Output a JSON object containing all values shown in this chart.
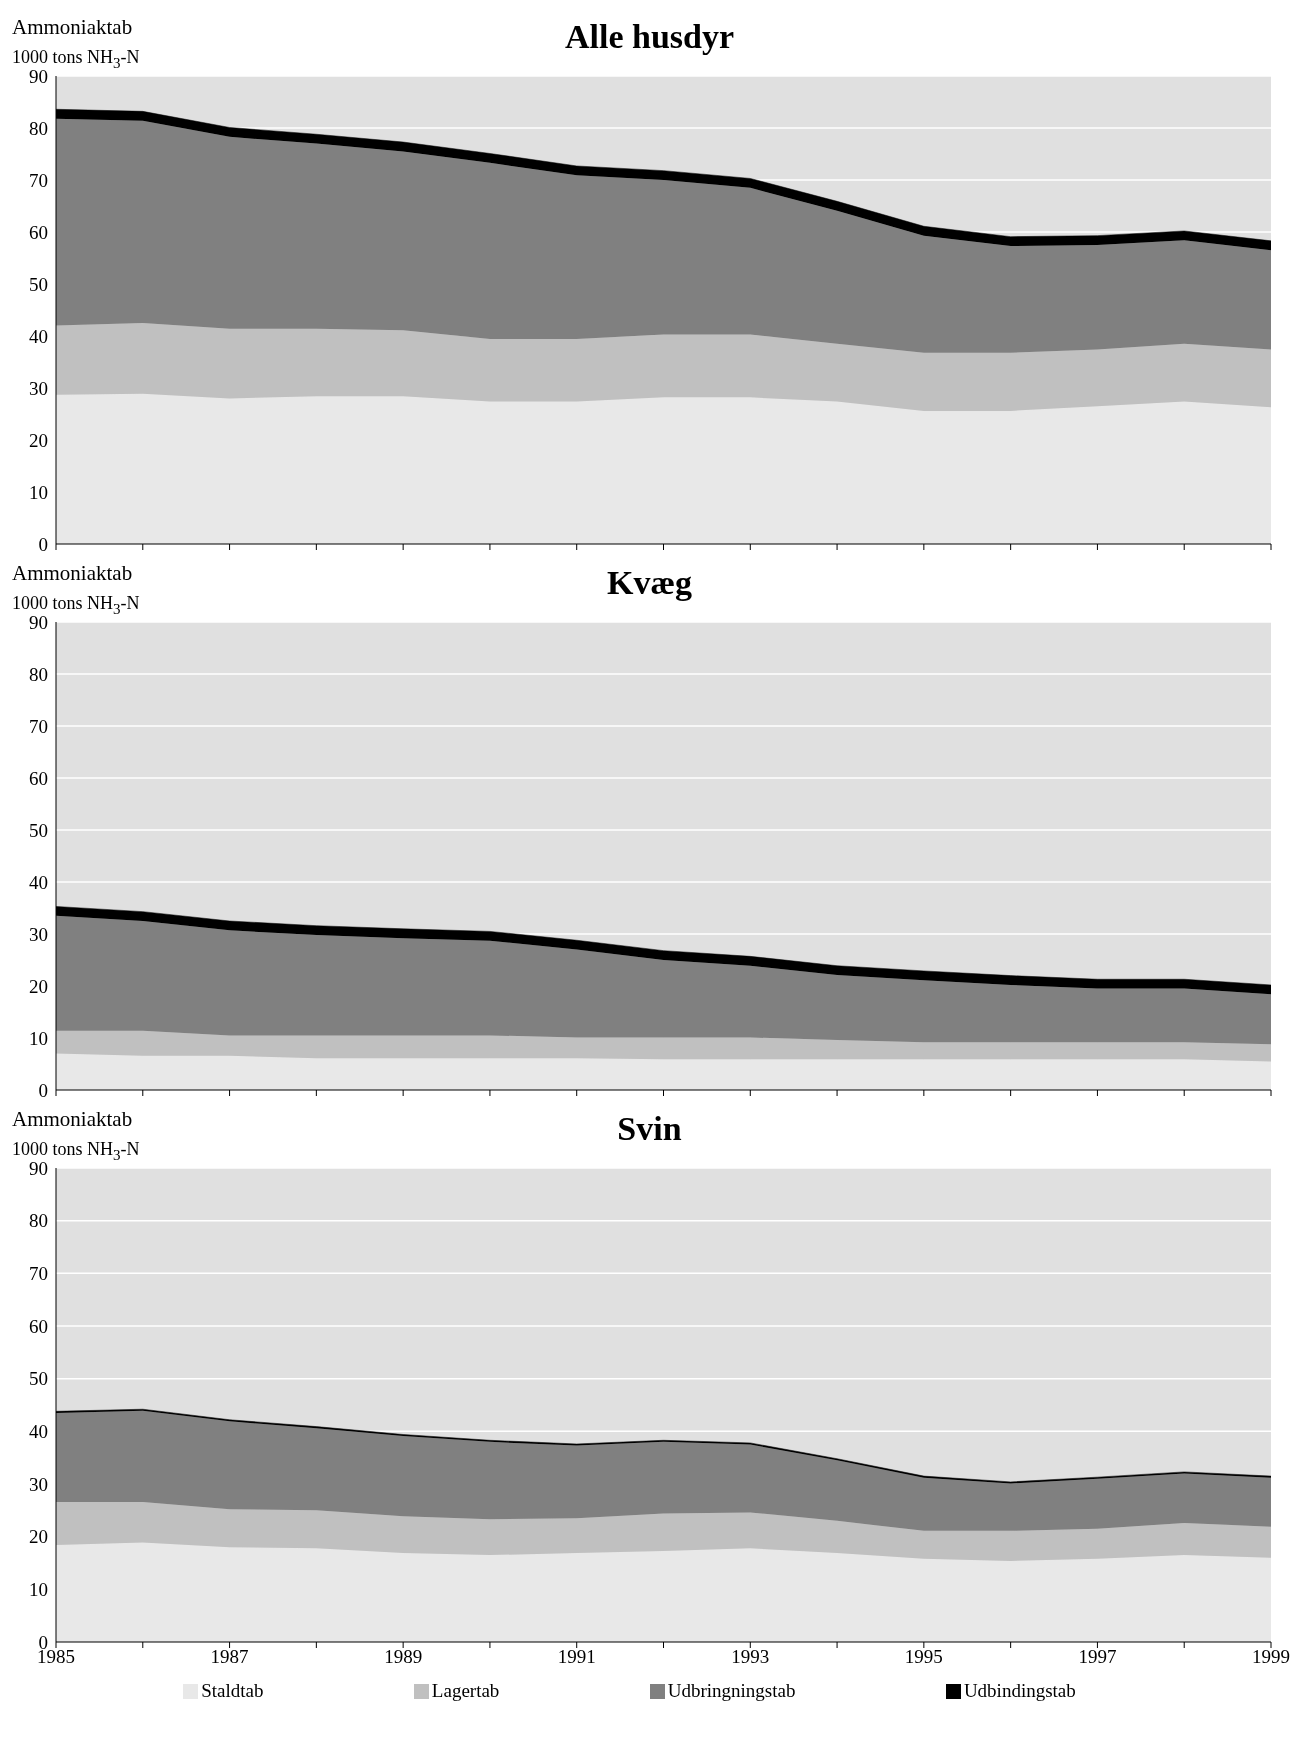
{
  "chart_data": [
    {
      "type": "area",
      "title": "Alle husdyr",
      "ylabel": "Ammoniaktab\n1000 tons NH$_{3}$-N",
      "stacked": true,
      "grid": "y",
      "legend": false,
      "tick_labels": "y",
      "x": [
        1985,
        1986,
        1987,
        1988,
        1989,
        1990,
        1991,
        1992,
        1993,
        1994,
        1995,
        1996,
        1997,
        1998,
        1999
      ],
      "xlim": [
        1985,
        1999
      ],
      "xticks": [
        1985,
        {
          "value": 1986,
          "label": null
        },
        1987,
        {
          "value": 1988,
          "label": null
        },
        1989,
        {
          "value": 1990,
          "label": null
        },
        1991,
        {
          "value": 1992,
          "label": null
        },
        1993,
        {
          "value": 1994,
          "label": null
        },
        1995,
        {
          "value": 1996,
          "label": null
        },
        1997,
        {
          "value": 1998,
          "label": null
        },
        1999
      ],
      "ylim": [
        0,
        90
      ],
      "yticks": [
        0,
        10,
        20,
        30,
        40,
        50,
        60,
        70,
        80,
        90
      ],
      "series": [
        {
          "color": "#e8e8e8",
          "values": [
            28.7,
            28.9,
            28,
            28.4,
            28.4,
            27.4,
            27.4,
            28.2,
            28.2,
            27.4,
            25.6,
            25.6,
            26.5,
            27.4,
            26.3
          ]
        },
        {
          "color": "#c0c0c0",
          "values": [
            13.3,
            13.6,
            13.4,
            13,
            12.7,
            12,
            12,
            12.1,
            12.1,
            11.1,
            11.2,
            11.2,
            10.9,
            11.1,
            11.1
          ]
        },
        {
          "color": "#808080",
          "values": [
            39.8,
            38.9,
            36.9,
            35.6,
            34.4,
            33.9,
            31.5,
            29.7,
            28.2,
            25.6,
            22.5,
            20.5,
            20.1,
            19.9,
            19.1
          ]
        },
        {
          "color": "#000000",
          "values": [
            1.8,
            1.8,
            1.8,
            1.8,
            1.8,
            1.8,
            1.8,
            1.8,
            1.8,
            1.8,
            1.8,
            1.8,
            1.8,
            1.8,
            1.8
          ]
        }
      ]
    },
    {
      "type": "area",
      "title": "Kvæg",
      "ylabel": "Ammoniaktab\n1000 tons NH$_{3}$-N",
      "stacked": true,
      "grid": "y",
      "legend": false,
      "tick_labels": "y",
      "x": [
        1985,
        1986,
        1987,
        1988,
        1989,
        1990,
        1991,
        1992,
        1993,
        1994,
        1995,
        1996,
        1997,
        1998,
        1999
      ],
      "xlim": [
        1985,
        1999
      ],
      "xticks": [
        1985,
        {
          "value": 1986,
          "label": null
        },
        1987,
        {
          "value": 1988,
          "label": null
        },
        1989,
        {
          "value": 1990,
          "label": null
        },
        1991,
        {
          "value": 1992,
          "label": null
        },
        1993,
        {
          "value": 1994,
          "label": null
        },
        1995,
        {
          "value": 1996,
          "label": null
        },
        1997,
        {
          "value": 1998,
          "label": null
        },
        1999
      ],
      "ylim": [
        0,
        90
      ],
      "yticks": [
        0,
        10,
        20,
        30,
        40,
        50,
        60,
        70,
        80,
        90
      ],
      "series": [
        {
          "color": "#e8e8e8",
          "values": [
            7,
            6.6,
            6.6,
            6.1,
            6.1,
            6.1,
            6.1,
            5.9,
            5.9,
            5.9,
            5.9,
            5.9,
            5.9,
            5.9,
            5.5
          ]
        },
        {
          "color": "#c0c0c0",
          "values": [
            4.4,
            4.8,
            3.9,
            4.4,
            4.4,
            4.4,
            4,
            4.2,
            4.2,
            3.7,
            3.3,
            3.3,
            3.3,
            3.3,
            3.3
          ]
        },
        {
          "color": "#808080",
          "values": [
            22.1,
            21.1,
            20.2,
            19.3,
            18.7,
            18.2,
            16.9,
            14.9,
            13.8,
            12.5,
            11.9,
            11,
            10.3,
            10.3,
            9.6
          ]
        },
        {
          "color": "#000000",
          "values": [
            1.8,
            1.8,
            1.8,
            1.8,
            1.8,
            1.8,
            1.8,
            1.8,
            1.8,
            1.8,
            1.8,
            1.8,
            1.8,
            1.8,
            1.8
          ]
        }
      ]
    },
    {
      "type": "area",
      "title": "Svin",
      "ylabel": "Ammoniaktab\n1000 tons NH$_{3}$-N",
      "stacked": true,
      "grid": "y",
      "legend": "bottom",
      "x": [
        1985,
        1986,
        1987,
        1988,
        1989,
        1990,
        1991,
        1992,
        1993,
        1994,
        1995,
        1996,
        1997,
        1998,
        1999
      ],
      "xlim": [
        1985,
        1999
      ],
      "xticks": [
        1985,
        {
          "value": 1986,
          "label": null
        },
        1987,
        {
          "value": 1988,
          "label": null
        },
        1989,
        {
          "value": 1990,
          "label": null
        },
        1991,
        {
          "value": 1992,
          "label": null
        },
        1993,
        {
          "value": 1994,
          "label": null
        },
        1995,
        {
          "value": 1996,
          "label": null
        },
        1997,
        {
          "value": 1998,
          "label": null
        },
        1999
      ],
      "ylim": [
        0,
        90
      ],
      "yticks": [
        0,
        10,
        20,
        30,
        40,
        50,
        60,
        70,
        80,
        90
      ],
      "series": [
        {
          "name": "Staldtab",
          "color": "#e8e8e8",
          "values": [
            18.4,
            18.9,
            18,
            17.8,
            16.9,
            16.5,
            16.9,
            17.3,
            17.8,
            16.9,
            15.8,
            15.4,
            15.8,
            16.5,
            16
          ]
        },
        {
          "name": "Lagertab",
          "color": "#c0c0c0",
          "values": [
            8.2,
            7.7,
            7.2,
            7.2,
            7,
            6.8,
            6.6,
            7.1,
            6.8,
            6.1,
            5.3,
            5.7,
            5.7,
            6.1,
            5.9
          ]
        },
        {
          "name": "Udbringningstab",
          "color": "#808080",
          "values": [
            16.9,
            17.3,
            16.7,
            15.6,
            15.2,
            14.7,
            13.8,
            13.6,
            12.9,
            11.5,
            10.1,
            9,
            9.5,
            9.4,
            9.3
          ]
        },
        {
          "name": "Udbindingstab",
          "color": "#000000",
          "values": [
            0.3,
            0.3,
            0.3,
            0.3,
            0.3,
            0.3,
            0.3,
            0.3,
            0.3,
            0.3,
            0.3,
            0.3,
            0.3,
            0.3,
            0.3
          ]
        }
      ]
    }
  ]
}
